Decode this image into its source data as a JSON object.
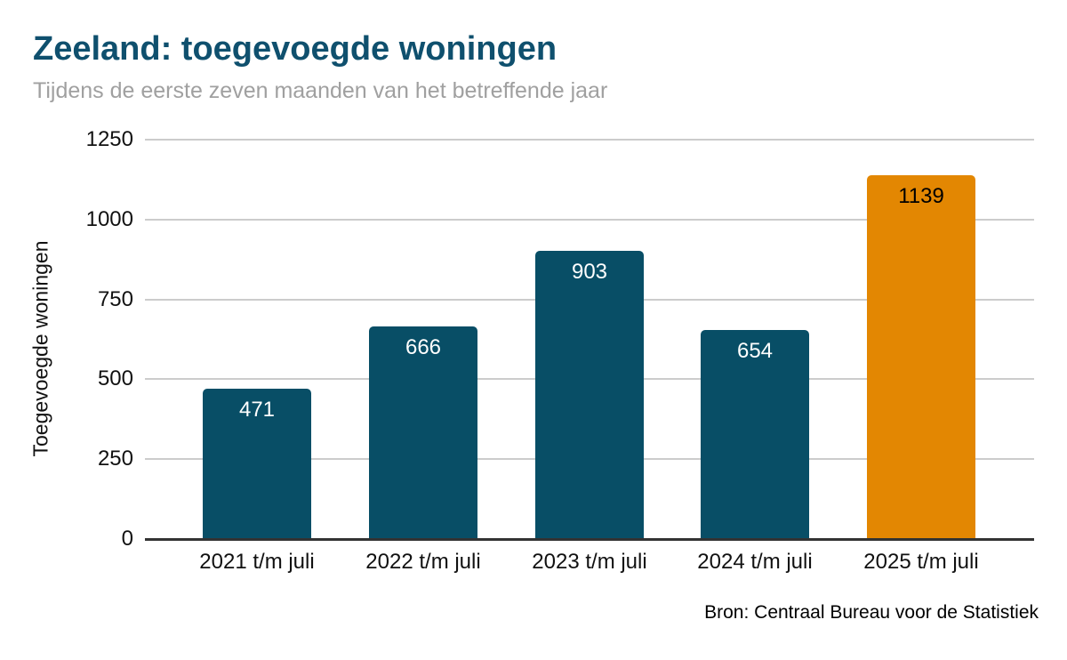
{
  "header": {
    "title": "Zeeland: toegevoegde woningen",
    "subtitle": "Tijdens de eerste zeven maanden van het betreffende jaar"
  },
  "footer": {
    "source": "Bron: Centraal Bureau voor de Statistiek"
  },
  "chart_data": {
    "type": "bar",
    "title": "Zeeland: toegevoegde woningen",
    "subtitle": "Tijdens de eerste zeven maanden van het betreffende jaar",
    "categories": [
      "2021 t/m juli",
      "2022 t/m juli",
      "2023 t/m juli",
      "2024 t/m juli",
      "2025 t/m juli"
    ],
    "values": [
      471,
      666,
      903,
      654,
      1139
    ],
    "bar_colors": [
      "#084e66",
      "#084e66",
      "#084e66",
      "#084e66",
      "#e38702"
    ],
    "value_label_colors": [
      "#ffffff",
      "#ffffff",
      "#ffffff",
      "#ffffff",
      "#000000"
    ],
    "xlabel": "",
    "ylabel": "Toegevoegde woningen",
    "ylim": [
      0,
      1250
    ],
    "y_ticks": [
      0,
      250,
      500,
      750,
      1000,
      1250
    ],
    "grid": true,
    "legend": false
  },
  "colors": {
    "bar_default": "#084e66",
    "bar_highlight": "#e38702",
    "title": "#0f506e",
    "subtitle": "#a0a0a0",
    "gridline": "#cccccc",
    "axis_line": "#333333"
  }
}
